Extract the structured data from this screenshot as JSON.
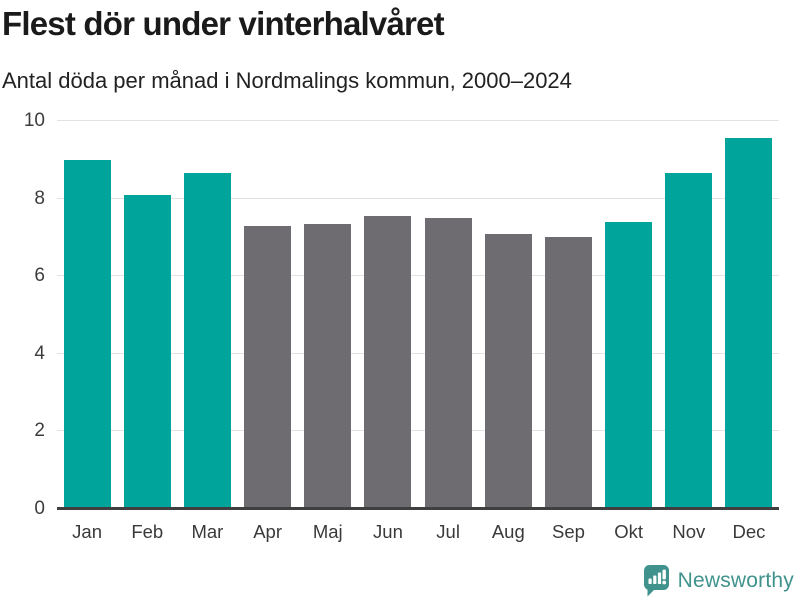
{
  "header": {
    "title": "Flest dör under vinterhalvåret",
    "subtitle": "Antal döda per månad i Nordmalings kommun, 2000–2024"
  },
  "chart_data": {
    "type": "bar",
    "title": "Flest dör under vinterhalvåret",
    "subtitle": "Antal döda per månad i Nordmalings kommun, 2000–2024",
    "categories": [
      "Jan",
      "Feb",
      "Mar",
      "Apr",
      "Maj",
      "Jun",
      "Jul",
      "Aug",
      "Sep",
      "Okt",
      "Nov",
      "Dec"
    ],
    "values": [
      9.0,
      8.1,
      8.65,
      7.3,
      7.35,
      7.55,
      7.5,
      7.1,
      7.0,
      7.4,
      8.65,
      9.55
    ],
    "bar_color_keys": [
      "highlight",
      "highlight",
      "highlight",
      "neutral",
      "neutral",
      "neutral",
      "neutral",
      "neutral",
      "neutral",
      "highlight",
      "highlight",
      "highlight"
    ],
    "xlabel": "",
    "ylabel": "",
    "ylim": [
      0,
      10
    ],
    "yticks": [
      0,
      2,
      4,
      6,
      8,
      10
    ],
    "grid": "horizontal",
    "legend": "none"
  },
  "colors": {
    "highlight": "#00a49a",
    "neutral": "#6e6c70",
    "gridline": "#e2e2e2",
    "baseline": "#3f3f3f",
    "axis_text": "#3d3d3d",
    "logo_teal": "#40938d"
  },
  "footer": {
    "brand": "Newsworthy"
  }
}
